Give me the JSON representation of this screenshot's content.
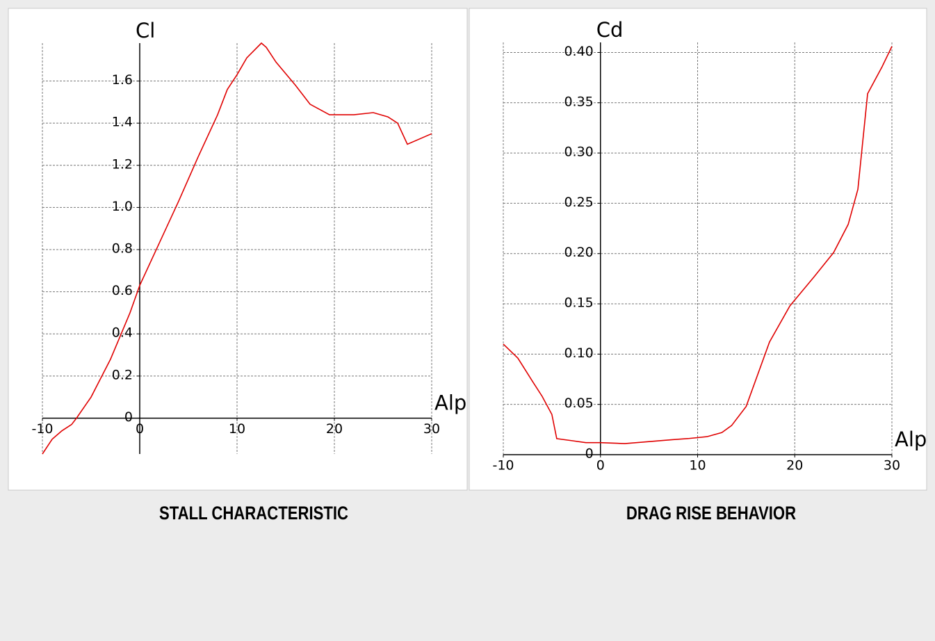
{
  "chart_data": [
    {
      "type": "line",
      "title": "STALL CHARACTERISTIC",
      "x_label": "Alp",
      "y_label": "Cl",
      "x": [
        -10,
        -9,
        -8,
        -7,
        -6.5,
        -5,
        -4,
        -3,
        -2,
        -1,
        0,
        2,
        4,
        6,
        8,
        9,
        10,
        11,
        12.5,
        13,
        14,
        16,
        17.5,
        19.5,
        22,
        24,
        25.5,
        26.5,
        27.5,
        30
      ],
      "values": [
        -0.17,
        -0.1,
        -0.06,
        -0.03,
        0,
        0.1,
        0.19,
        0.28,
        0.39,
        0.5,
        0.63,
        0.83,
        1.03,
        1.24,
        1.44,
        1.56,
        1.63,
        1.71,
        1.78,
        1.76,
        1.69,
        1.58,
        1.49,
        1.44,
        1.44,
        1.45,
        1.43,
        1.4,
        1.3,
        1.35
      ],
      "color": "#e00000",
      "xlim": [
        -10,
        30
      ],
      "xticks": [
        -10,
        0,
        10,
        20,
        30
      ],
      "ylim": [
        -0.17,
        1.78
      ],
      "yticks": [
        0,
        0.2,
        0.4,
        0.6,
        0.8,
        {
          "value": 1,
          "label": "1.0"
        },
        1.2,
        1.4,
        1.6
      ],
      "grid": true
    },
    {
      "type": "line",
      "title": "DRAG RISE BEHAVIOR",
      "x_label": "Alp",
      "y_label": "Cd",
      "x": [
        -10,
        -8.5,
        -7,
        -6,
        -5,
        -4.5,
        -3,
        -1.5,
        0,
        2.5,
        5,
        7.5,
        9,
        11,
        12.5,
        13.5,
        15,
        17.4,
        19.5,
        22,
        24,
        25.5,
        26.5,
        27.5,
        29,
        30
      ],
      "values": [
        0.11,
        0.096,
        0.073,
        0.058,
        0.04,
        0.016,
        0.014,
        0.012,
        0.012,
        0.011,
        0.013,
        0.015,
        0.016,
        0.018,
        0.022,
        0.029,
        0.048,
        0.112,
        0.148,
        0.177,
        0.201,
        0.229,
        0.264,
        0.359,
        0.386,
        0.406
      ],
      "color": "#e00000",
      "xlim": [
        -10,
        30
      ],
      "xticks": [
        -10,
        0,
        10,
        20,
        30
      ],
      "ylim": [
        0,
        0.41
      ],
      "yticks": [
        0,
        0.05,
        {
          "value": 0.1,
          "label": "0.10"
        },
        0.15,
        {
          "value": 0.2,
          "label": "0.20"
        },
        0.25,
        {
          "value": 0.3,
          "label": "0.30"
        },
        0.35,
        {
          "value": 0.4,
          "label": "0.40"
        }
      ],
      "grid": true
    }
  ]
}
